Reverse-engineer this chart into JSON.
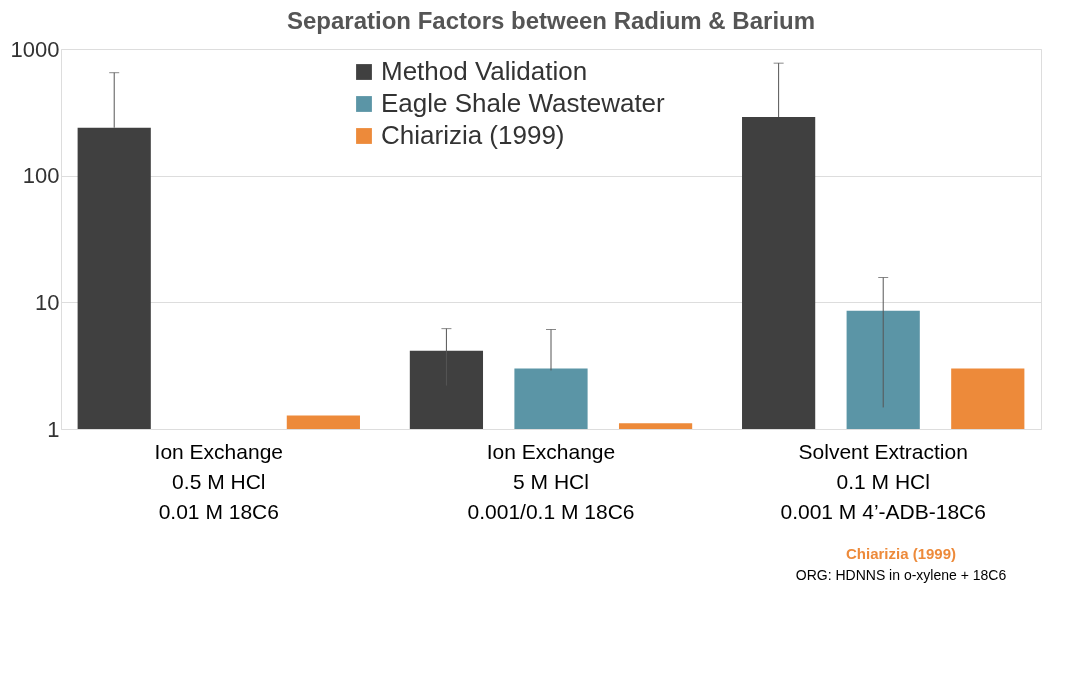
{
  "chart_data": {
    "type": "bar",
    "title": "Separation Factors between Radium & Barium",
    "categories": [
      "Ion Exchange\n0.5 M HCl\n0.01 M 18C6",
      "Ion Exchange\n5 M HCl\n0.001/0.1 M 18C6",
      "Solvent Extraction\n0.1 M HCl\n0.001 M 4’-ADB-18C6"
    ],
    "series": [
      {
        "name": "Method Validation",
        "color": "#404040",
        "values": [
          239,
          4.15,
          290
        ],
        "errors": [
          [
            239,
            650
          ],
          [
            2.2,
            6.2
          ],
          [
            290,
            773
          ]
        ]
      },
      {
        "name": "Eagle Shale Wastewater",
        "color": "#5b95a6",
        "values": [
          null,
          3.0,
          8.6
        ],
        "errors": [
          null,
          [
            2.9,
            6.1
          ],
          [
            1.48,
            15.7
          ]
        ]
      },
      {
        "name": "Chiarizia (1999)",
        "color": "#ed8a3a",
        "values": [
          1.28,
          1.11,
          3.0
        ]
      }
    ],
    "log": "y",
    "ylim": [
      1,
      1000
    ],
    "yticks": [
      1,
      10,
      100,
      1000
    ],
    "grid": "y",
    "legend": "top",
    "annotations": [
      "Chiarizia (1999)",
      "ORG: HDNNS in o-xylene + 18C6"
    ]
  }
}
